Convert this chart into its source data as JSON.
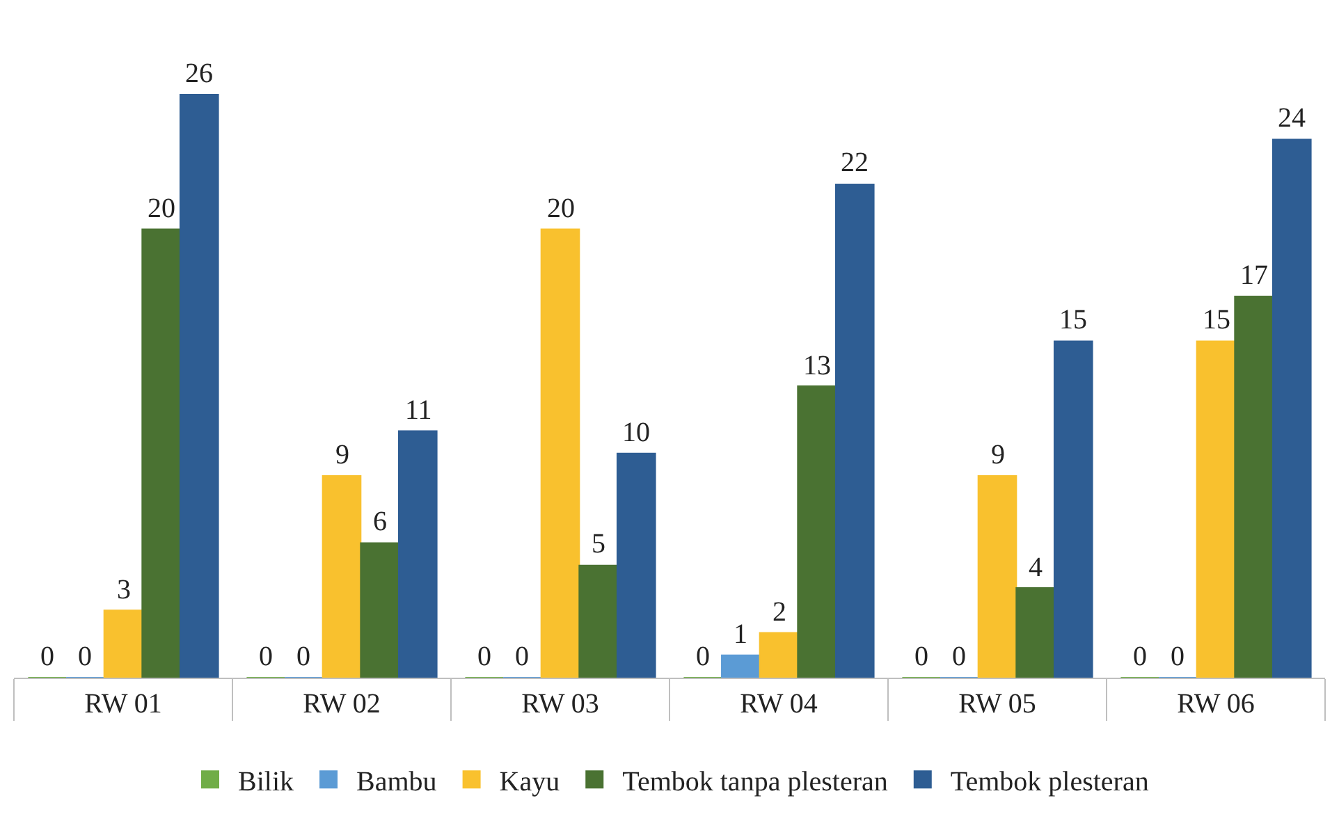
{
  "chart_data": {
    "type": "bar",
    "categories": [
      "RW 01",
      "RW 02",
      "RW 03",
      "RW 04",
      "RW 05",
      "RW 06"
    ],
    "series": [
      {
        "name": "Bilik",
        "color": "#70ad47",
        "values": [
          0,
          0,
          0,
          0,
          0,
          0
        ]
      },
      {
        "name": "Bambu",
        "color": "#5b9bd5",
        "values": [
          0,
          0,
          0,
          1,
          0,
          0
        ]
      },
      {
        "name": "Kayu",
        "color": "#f9c12e",
        "values": [
          3,
          9,
          20,
          2,
          9,
          15
        ]
      },
      {
        "name": "Tembok tanpa plesteran",
        "color": "#4a7232",
        "values": [
          20,
          6,
          5,
          13,
          4,
          17
        ]
      },
      {
        "name": "Tembok plesteran",
        "color": "#2e5d93",
        "values": [
          26,
          11,
          10,
          22,
          15,
          24
        ]
      }
    ],
    "data_labels": true,
    "grid": false,
    "legend": "bottom"
  }
}
